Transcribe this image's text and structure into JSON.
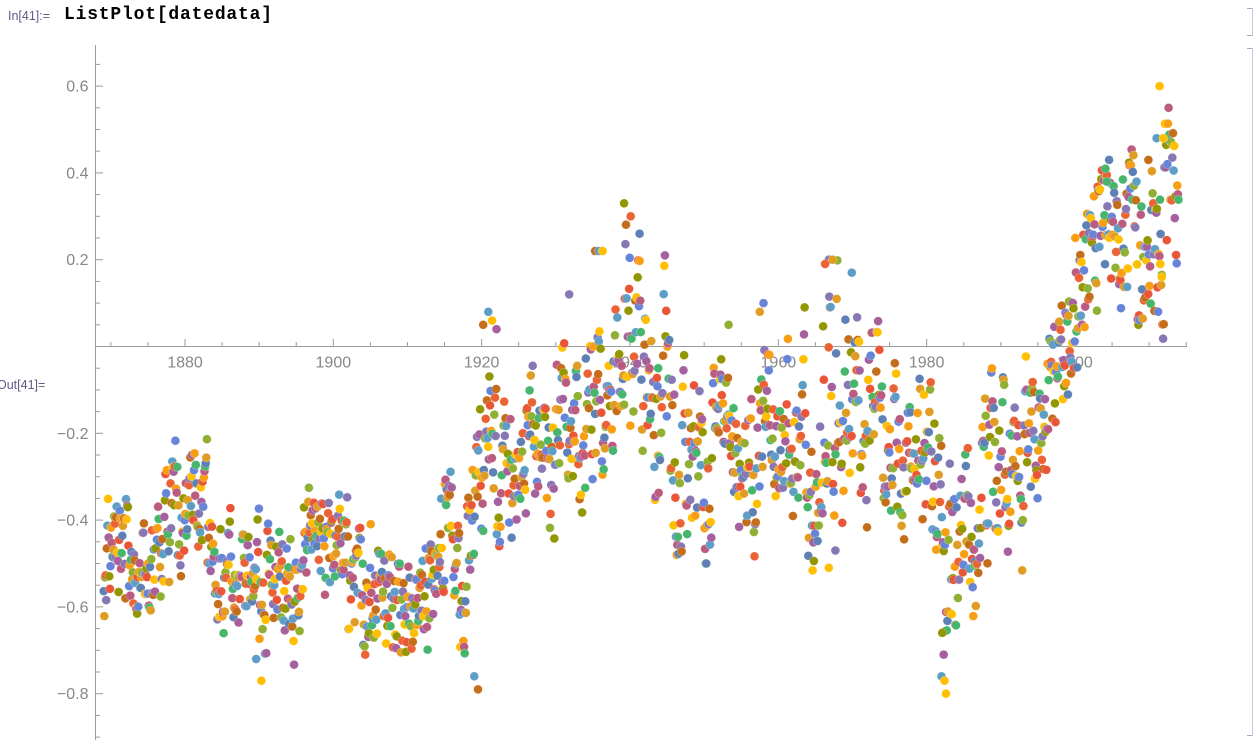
{
  "notebook": {
    "in_label": "In[41]:=",
    "out_label": "Out[41]=",
    "input_code": "ListPlot[datedata]"
  },
  "colors": {
    "label_blue": "#5c5c88",
    "axis": "#9b9b9b",
    "tick_label": "#878787",
    "background": "#ffffff"
  },
  "chart_data": {
    "type": "scatter",
    "title": "",
    "xlabel": "",
    "ylabel": "",
    "legend": "none",
    "grid": false,
    "xlim": [
      1867.9,
      2015.2
    ],
    "ylim": [
      -0.91,
      0.69
    ],
    "x_ticks": [
      1880,
      1900,
      1920,
      1940,
      1960,
      1980,
      2000
    ],
    "y_ticks": [
      0.6,
      0.4,
      0.2,
      -0.2,
      -0.4,
      -0.6,
      -0.8
    ],
    "x_minor_step": 5,
    "x_minor_range": [
      1870,
      2015
    ],
    "y_minor_step": 0.05,
    "y_minor_range": [
      -0.9,
      0.65
    ],
    "points_per_year": 12,
    "start_year": 1869,
    "seed": 11,
    "palette": [
      "#5e81b5",
      "#e19c24",
      "#8fb032",
      "#eb6235",
      "#8778b3",
      "#c56e1a",
      "#5d9ec7",
      "#ffbf00",
      "#a5609d",
      "#929600",
      "#e95536",
      "#6685d9",
      "#f89e13",
      "#bc5b80",
      "#47b66d"
    ],
    "annual_means": [
      -0.48,
      -0.47,
      -0.5,
      -0.46,
      -0.49,
      -0.52,
      -0.54,
      -0.51,
      -0.42,
      -0.34,
      -0.44,
      -0.4,
      -0.34,
      -0.36,
      -0.45,
      -0.52,
      -0.54,
      -0.52,
      -0.55,
      -0.5,
      -0.43,
      -0.57,
      -0.52,
      -0.57,
      -0.6,
      -0.57,
      -0.53,
      -0.46,
      -0.43,
      -0.5,
      -0.46,
      -0.43,
      -0.46,
      -0.52,
      -0.57,
      -0.61,
      -0.54,
      -0.48,
      -0.57,
      -0.59,
      -0.61,
      -0.59,
      -0.61,
      -0.57,
      -0.54,
      -0.42,
      -0.38,
      -0.48,
      -0.55,
      -0.42,
      -0.32,
      -0.25,
      -0.21,
      -0.3,
      -0.28,
      -0.32,
      -0.26,
      -0.14,
      -0.23,
      -0.23,
      -0.35,
      -0.16,
      -0.13,
      -0.2,
      -0.3,
      -0.16,
      -0.12,
      -0.1,
      -0.02,
      0.03,
      0.06,
      0.0,
      0.0,
      -0.08,
      -0.14,
      -0.12,
      -0.14,
      -0.22,
      -0.26,
      -0.27,
      -0.3,
      -0.3,
      -0.24,
      -0.18,
      -0.14,
      -0.26,
      -0.3,
      -0.32,
      -0.16,
      -0.1,
      -0.19,
      -0.24,
      -0.19,
      -0.19,
      -0.15,
      -0.3,
      -0.26,
      -0.12,
      -0.1,
      -0.16,
      -0.08,
      -0.1,
      -0.24,
      -0.16,
      -0.06,
      -0.28,
      -0.2,
      -0.33,
      -0.2,
      -0.24,
      -0.24,
      -0.29,
      -0.34,
      -0.52,
      -0.44,
      -0.48,
      -0.42,
      -0.38,
      -0.33,
      -0.3,
      -0.32,
      -0.28,
      -0.27,
      -0.32,
      -0.25,
      -0.2,
      -0.17,
      -0.16,
      -0.07,
      0.0,
      0.02,
      0.1,
      0.16,
      0.23,
      0.26,
      0.28,
      0.3,
      0.24,
      0.27,
      0.15,
      0.12,
      0.24,
      0.24,
      0.29,
      0.32
    ],
    "annual_spread": [
      0.16,
      0.16,
      0.16,
      0.16,
      0.17,
      0.17,
      0.16,
      0.16,
      0.16,
      0.16,
      0.16,
      0.16,
      0.15,
      0.16,
      0.16,
      0.16,
      0.16,
      0.16,
      0.16,
      0.16,
      0.17,
      0.18,
      0.17,
      0.18,
      0.18,
      0.17,
      0.16,
      0.16,
      0.16,
      0.16,
      0.16,
      0.16,
      0.16,
      0.16,
      0.16,
      0.16,
      0.16,
      0.16,
      0.16,
      0.16,
      0.16,
      0.16,
      0.16,
      0.17,
      0.16,
      0.16,
      0.16,
      0.17,
      0.19,
      0.22,
      0.2,
      0.21,
      0.2,
      0.19,
      0.19,
      0.19,
      0.19,
      0.18,
      0.19,
      0.19,
      0.21,
      0.19,
      0.19,
      0.22,
      0.21,
      0.21,
      0.22,
      0.22,
      0.22,
      0.24,
      0.26,
      0.28,
      0.27,
      0.3,
      0.32,
      0.33,
      0.3,
      0.26,
      0.24,
      0.24,
      0.24,
      0.2,
      0.2,
      0.2,
      0.2,
      0.2,
      0.21,
      0.21,
      0.24,
      0.22,
      0.22,
      0.24,
      0.24,
      0.24,
      0.24,
      0.28,
      0.28,
      0.3,
      0.3,
      0.3,
      0.28,
      0.24,
      0.24,
      0.22,
      0.22,
      0.24,
      0.24,
      0.24,
      0.22,
      0.22,
      0.24,
      0.24,
      0.26,
      0.28,
      0.29,
      0.27,
      0.25,
      0.25,
      0.25,
      0.25,
      0.25,
      0.25,
      0.25,
      0.25,
      0.24,
      0.23,
      0.22,
      0.22,
      0.21,
      0.21,
      0.21,
      0.21,
      0.21,
      0.21,
      0.21,
      0.22,
      0.22,
      0.22,
      0.22,
      0.23,
      0.23,
      0.25,
      0.26,
      0.26,
      0.27
    ],
    "notable_points": [
      {
        "x": 2011.4,
        "y": 0.6,
        "c": 7
      },
      {
        "x": 2011.0,
        "y": 0.48,
        "c": 6
      },
      {
        "x": 2011.9,
        "y": 0.48,
        "c": 7
      },
      {
        "x": 2011.5,
        "y": 0.19,
        "c": 7
      },
      {
        "x": 2011.7,
        "y": 0.16,
        "c": 7
      },
      {
        "x": 2004.6,
        "y": 0.43,
        "c": 0
      },
      {
        "x": 2009.9,
        "y": 0.43,
        "c": 5
      },
      {
        "x": 2004.1,
        "y": 0.41,
        "c": 14
      },
      {
        "x": 2004.3,
        "y": 0.38,
        "c": 14
      },
      {
        "x": 1982.1,
        "y": -0.66,
        "c": 9
      },
      {
        "x": 1982.3,
        "y": -0.71,
        "c": 8
      },
      {
        "x": 1982.0,
        "y": -0.76,
        "c": 6
      },
      {
        "x": 1982.4,
        "y": -0.77,
        "c": 7
      },
      {
        "x": 1982.6,
        "y": -0.8,
        "c": 7
      },
      {
        "x": 1939.2,
        "y": 0.33,
        "c": 9
      },
      {
        "x": 1940.1,
        "y": 0.3,
        "c": 3
      },
      {
        "x": 1941.3,
        "y": 0.26,
        "c": 0
      },
      {
        "x": 1935.3,
        "y": 0.22,
        "c": 5
      },
      {
        "x": 1935.8,
        "y": 0.22,
        "c": 6
      },
      {
        "x": 1936.3,
        "y": 0.22,
        "c": 7
      },
      {
        "x": 1890.3,
        "y": -0.77,
        "c": 7
      },
      {
        "x": 1889.6,
        "y": -0.72,
        "c": 6
      },
      {
        "x": 1919.0,
        "y": -0.76,
        "c": 6
      },
      {
        "x": 1919.5,
        "y": -0.79,
        "c": 5
      },
      {
        "x": 1920.9,
        "y": 0.08,
        "c": 6
      },
      {
        "x": 1920.2,
        "y": 0.05,
        "c": 5
      },
      {
        "x": 1921.4,
        "y": 0.06,
        "c": 7
      },
      {
        "x": 1922.0,
        "y": 0.04,
        "c": 8
      },
      {
        "x": 1966.8,
        "y": 0.2,
        "c": 4
      },
      {
        "x": 1967.3,
        "y": 0.2,
        "c": 1
      },
      {
        "x": 1966.3,
        "y": 0.19,
        "c": 3
      },
      {
        "x": 1969.9,
        "y": 0.17,
        "c": 6
      },
      {
        "x": 1966.8,
        "y": -0.51,
        "c": 7
      },
      {
        "x": 1967.7,
        "y": -0.47,
        "c": 4
      },
      {
        "x": 1958.0,
        "y": 0.1,
        "c": 11
      },
      {
        "x": 1957.5,
        "y": 0.08,
        "c": 1
      },
      {
        "x": 1931.8,
        "y": 0.12,
        "c": 4
      },
      {
        "x": 1943.8,
        "y": -0.05,
        "c": 14
      },
      {
        "x": 1953.3,
        "y": 0.05,
        "c": 2
      }
    ]
  }
}
